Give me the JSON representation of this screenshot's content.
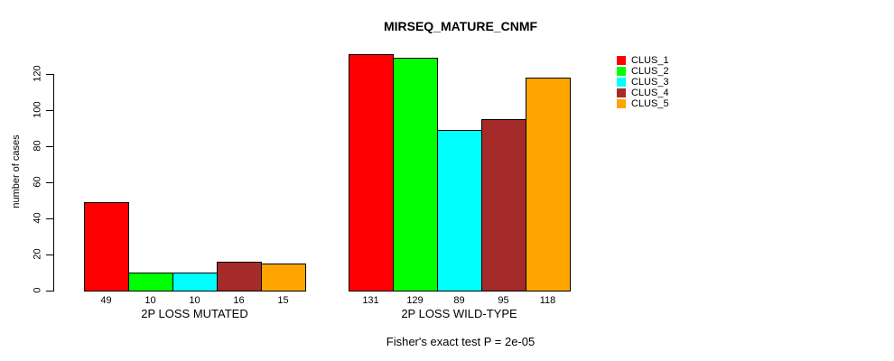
{
  "chart_data": {
    "type": "bar",
    "title": "MIRSEQ_MATURE_CNMF",
    "xlabel": "",
    "ylabel": "number of cases",
    "ylim": [
      0,
      120
    ],
    "yticks": [
      0,
      20,
      40,
      60,
      80,
      100,
      120
    ],
    "grid": false,
    "legend_position": "right",
    "categories": [
      "2P LOSS MUTATED",
      "2P LOSS WILD-TYPE"
    ],
    "series": [
      {
        "name": "CLUS_1",
        "color": "#FF0000",
        "values": [
          49,
          131
        ]
      },
      {
        "name": "CLUS_2",
        "color": "#00FF00",
        "values": [
          10,
          129
        ]
      },
      {
        "name": "CLUS_3",
        "color": "#00FFFF",
        "values": [
          10,
          89
        ]
      },
      {
        "name": "CLUS_4",
        "color": "#A52A2A",
        "values": [
          16,
          95
        ]
      },
      {
        "name": "CLUS_5",
        "color": "#FFA500",
        "values": [
          15,
          118
        ]
      }
    ],
    "bar_value_labels": [
      [
        "49",
        "10",
        "10",
        "16",
        "15"
      ],
      [
        "131",
        "129",
        "89",
        "95",
        "118"
      ]
    ],
    "annotation": "Fisher's exact test P = 2e-05",
    "axis_color": "#000000"
  }
}
